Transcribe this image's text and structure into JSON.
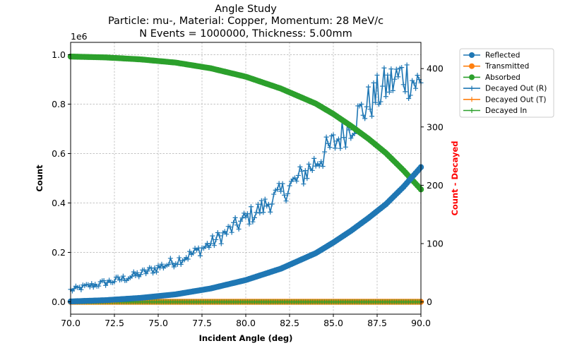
{
  "chart_data": {
    "type": "line",
    "title_lines": [
      "Angle Study",
      "Particle: mu-, Material: Copper, Momentum: 28 MeV/c",
      "N Events = 1000000, Thickness: 5.00mm"
    ],
    "xlabel": "Incident Angle (deg)",
    "ylabel_left": "Count",
    "ylabel_right": "Count - Decayed",
    "ylabel_right_color": "#ff0000",
    "left_offset_label": "1e6",
    "xlim": [
      70,
      90
    ],
    "ylim_left": [
      -0.05,
      1.05
    ],
    "ylim_right": [
      -21,
      445
    ],
    "x_ticks": [
      "70.0",
      "72.5",
      "75.0",
      "77.5",
      "80.0",
      "82.5",
      "85.0",
      "87.5",
      "90.0"
    ],
    "y_left_ticks": [
      "0.0",
      "0.2",
      "0.4",
      "0.6",
      "0.8",
      "1.0"
    ],
    "y_right_ticks": [
      "0",
      "100",
      "200",
      "300",
      "400"
    ],
    "grid": true,
    "legend_position": "outside-right-top",
    "angle_points": 201,
    "series": [
      {
        "name": "Reflected",
        "axis": "left",
        "color": "#1f77b4",
        "marker": "circle",
        "x": [
          70,
          72,
          74,
          76,
          78,
          80,
          82,
          84,
          85,
          86,
          87,
          88,
          89,
          90
        ],
        "y": [
          0.0015,
          0.0066,
          0.0158,
          0.0302,
          0.054,
          0.088,
          0.134,
          0.197,
          0.24,
          0.287,
          0.339,
          0.395,
          0.465,
          0.545
        ]
      },
      {
        "name": "Transmitted",
        "axis": "left",
        "color": "#ff7f0e",
        "marker": "circle",
        "x": [
          70,
          90
        ],
        "y": [
          0,
          0
        ]
      },
      {
        "name": "Absorbed",
        "axis": "left",
        "color": "#2ca02c",
        "marker": "circle",
        "x": [
          70,
          72,
          74,
          76,
          78,
          80,
          82,
          84,
          85,
          86,
          87,
          88,
          89,
          90
        ],
        "y": [
          0.9925,
          0.989,
          0.981,
          0.968,
          0.945,
          0.911,
          0.863,
          0.802,
          0.76,
          0.712,
          0.66,
          0.602,
          0.532,
          0.455
        ]
      },
      {
        "name": "Decayed Out (R)",
        "axis": "right",
        "color": "#1f77b4",
        "marker": "plus",
        "x": [
          70,
          71,
          72,
          73,
          74,
          75,
          76,
          77,
          78,
          79,
          80,
          81,
          82,
          83,
          84,
          85,
          86,
          87,
          88,
          89,
          90
        ],
        "y": [
          20,
          27,
          33,
          40,
          48,
          59,
          70,
          83,
          100,
          121,
          143,
          163,
          186,
          210,
          240,
          270,
          305,
          340,
          370,
          390,
          370
        ]
      },
      {
        "name": "Decayed Out (T)",
        "axis": "right",
        "color": "#ff7f0e",
        "marker": "plus",
        "x": [
          70,
          90
        ],
        "y": [
          0,
          0
        ]
      },
      {
        "name": "Decayed In",
        "axis": "right",
        "color": "#2ca02c",
        "marker": "plus",
        "x": [
          70,
          90
        ],
        "y": [
          0,
          0
        ]
      }
    ]
  }
}
